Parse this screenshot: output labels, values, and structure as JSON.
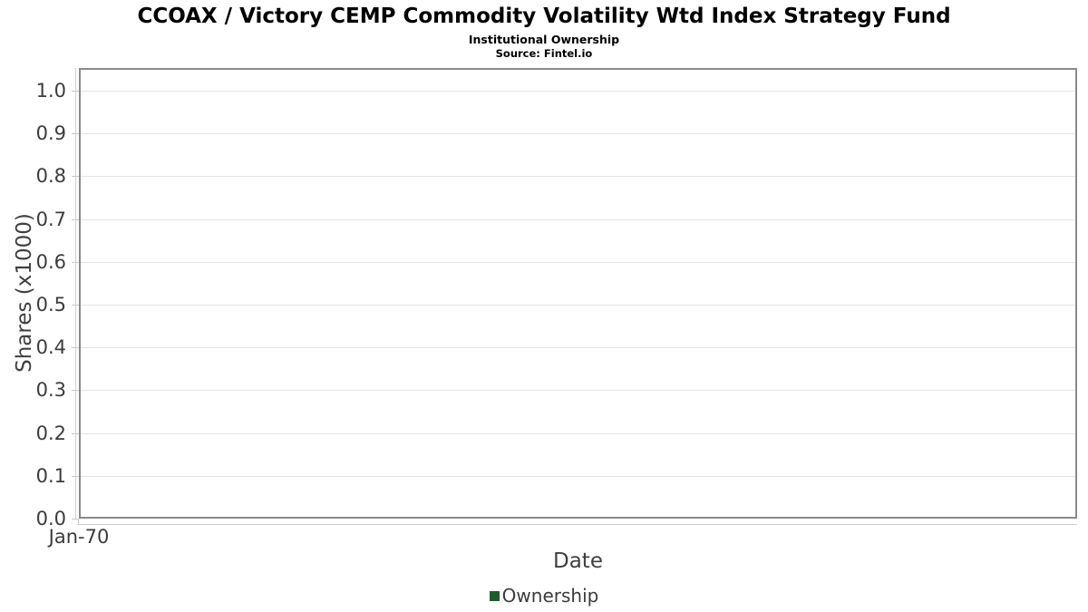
{
  "chart_data": {
    "type": "line",
    "title": "CCOAX / Victory CEMP Commodity Volatility Wtd Index Strategy Fund",
    "subtitle": "Institutional Ownership",
    "source": "Source: Fintel.io",
    "xlabel": "Date",
    "ylabel": "Shares (x1000)",
    "x_ticks": [
      "Jan-70"
    ],
    "y_ticks": [
      0.0,
      0.1,
      0.2,
      0.3,
      0.4,
      0.5,
      0.6,
      0.7,
      0.8,
      0.9,
      1.0
    ],
    "y_tick_labels": [
      "0.0",
      "0.1",
      "0.2",
      "0.3",
      "0.4",
      "0.5",
      "0.6",
      "0.7",
      "0.8",
      "0.9",
      "1.0"
    ],
    "ylim": [
      0,
      1.05
    ],
    "grid": true,
    "legend_position": "bottom-center",
    "series": [
      {
        "name": "Ownership",
        "color": "#1e5a30",
        "x": [],
        "values": []
      }
    ]
  }
}
